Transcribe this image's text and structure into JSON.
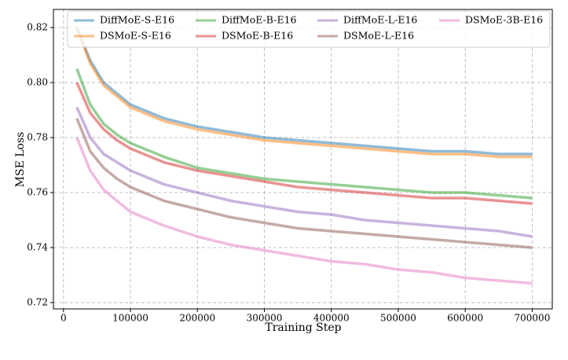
{
  "chart_data": {
    "type": "line",
    "xlabel": "Training Step",
    "ylabel": "MSE Loss",
    "x": [
      20000,
      40000,
      60000,
      80000,
      100000,
      150000,
      200000,
      250000,
      300000,
      350000,
      400000,
      450000,
      500000,
      550000,
      600000,
      650000,
      700000
    ],
    "series": [
      {
        "name": "DiffMoE-S-E16",
        "color": "#1f77b4",
        "values": [
          0.82,
          0.808,
          0.8,
          0.796,
          0.792,
          0.787,
          0.784,
          0.782,
          0.78,
          0.779,
          0.778,
          0.777,
          0.776,
          0.775,
          0.775,
          0.774,
          0.774
        ]
      },
      {
        "name": "DSMoE-S-E16",
        "color": "#ff7f0e",
        "values": [
          0.82,
          0.807,
          0.799,
          0.795,
          0.791,
          0.786,
          0.783,
          0.781,
          0.779,
          0.778,
          0.777,
          0.776,
          0.775,
          0.774,
          0.774,
          0.773,
          0.773
        ]
      },
      {
        "name": "DiffMoE-B-E16",
        "color": "#2ca02c",
        "values": [
          0.805,
          0.792,
          0.785,
          0.781,
          0.778,
          0.773,
          0.769,
          0.767,
          0.765,
          0.764,
          0.763,
          0.762,
          0.761,
          0.76,
          0.76,
          0.759,
          0.758
        ]
      },
      {
        "name": "DSMoE-B-E16",
        "color": "#d62728",
        "values": [
          0.8,
          0.789,
          0.783,
          0.779,
          0.776,
          0.771,
          0.768,
          0.766,
          0.764,
          0.762,
          0.761,
          0.76,
          0.759,
          0.758,
          0.758,
          0.757,
          0.756
        ]
      },
      {
        "name": "DiffMoE-L-E16",
        "color": "#9467bd",
        "values": [
          0.791,
          0.78,
          0.774,
          0.771,
          0.768,
          0.763,
          0.76,
          0.757,
          0.755,
          0.753,
          0.752,
          0.75,
          0.749,
          0.748,
          0.747,
          0.746,
          0.744
        ]
      },
      {
        "name": "DSMoE-L-E16",
        "color": "#8c564b",
        "values": [
          0.787,
          0.775,
          0.769,
          0.765,
          0.762,
          0.757,
          0.754,
          0.751,
          0.749,
          0.747,
          0.746,
          0.745,
          0.744,
          0.743,
          0.742,
          0.741,
          0.74
        ]
      },
      {
        "name": "DSMoE-3B-E16",
        "color": "#e377c2",
        "values": [
          0.78,
          0.768,
          0.761,
          0.757,
          0.753,
          0.748,
          0.744,
          0.741,
          0.739,
          0.737,
          0.735,
          0.734,
          0.732,
          0.731,
          0.729,
          0.728,
          0.727
        ]
      }
    ],
    "xlim": [
      -15000,
      730000
    ],
    "xticks": [
      0,
      100000,
      200000,
      300000,
      400000,
      500000,
      600000,
      700000
    ],
    "ylim": [
      0.7177,
      0.8266
    ],
    "yticks": [
      0.72,
      0.74,
      0.76,
      0.78,
      {
        "value": 0.8,
        "label": "0.80"
      },
      0.82
    ],
    "grid": true,
    "legend_loc": "upper left"
  }
}
